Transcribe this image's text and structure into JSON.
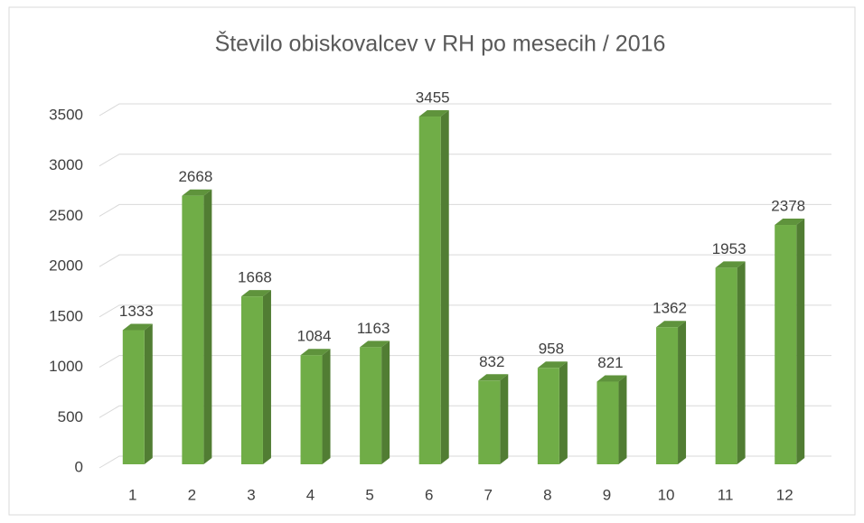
{
  "chart_data": {
    "type": "bar",
    "title": "Število obiskovalcev v RH po mesecih / 2016",
    "categories": [
      "1",
      "2",
      "3",
      "4",
      "5",
      "6",
      "7",
      "8",
      "9",
      "10",
      "11",
      "12"
    ],
    "values": [
      1333,
      2668,
      1668,
      1084,
      1163,
      3455,
      832,
      958,
      821,
      1362,
      1953,
      2378
    ],
    "color": "#70ad47",
    "ylim": [
      0,
      3500
    ],
    "yticks": [
      0,
      500,
      1000,
      1500,
      2000,
      2500,
      3000,
      3500
    ],
    "grid": true
  }
}
